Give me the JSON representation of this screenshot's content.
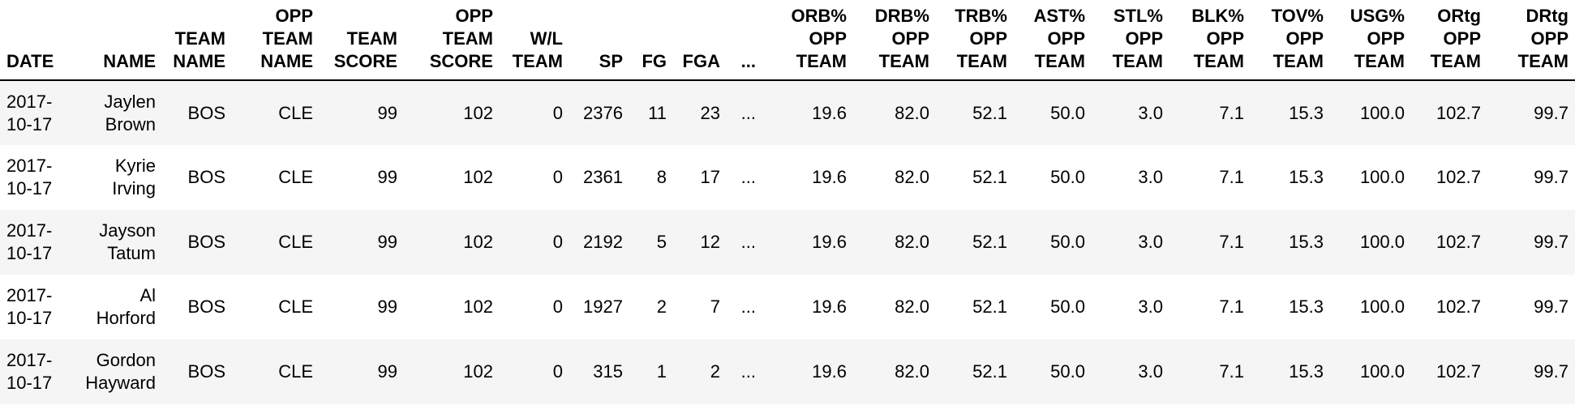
{
  "table": {
    "headers": [
      [
        "DATE"
      ],
      [
        "NAME"
      ],
      [
        "TEAM",
        "NAME"
      ],
      [
        "OPP",
        "TEAM",
        "NAME"
      ],
      [
        "TEAM",
        "SCORE"
      ],
      [
        "OPP",
        "TEAM",
        "SCORE"
      ],
      [
        "W/L",
        "TEAM"
      ],
      [
        "SP"
      ],
      [
        "FG"
      ],
      [
        "FGA"
      ],
      [
        "..."
      ],
      [
        "ORB%",
        "OPP",
        "TEAM"
      ],
      [
        "DRB%",
        "OPP",
        "TEAM"
      ],
      [
        "TRB%",
        "OPP",
        "TEAM"
      ],
      [
        "AST%",
        "OPP",
        "TEAM"
      ],
      [
        "STL%",
        "OPP",
        "TEAM"
      ],
      [
        "BLK%",
        "OPP",
        "TEAM"
      ],
      [
        "TOV%",
        "OPP",
        "TEAM"
      ],
      [
        "USG%",
        "OPP",
        "TEAM"
      ],
      [
        "ORtg",
        "OPP",
        "TEAM"
      ],
      [
        "DRtg",
        "OPP",
        "TEAM"
      ]
    ],
    "rows": [
      {
        "date": [
          "2017-",
          "10-17"
        ],
        "name": [
          "Jaylen",
          "Brown"
        ],
        "cells": [
          "BOS",
          "CLE",
          "99",
          "102",
          "0",
          "2376",
          "11",
          "23",
          "...",
          "19.6",
          "82.0",
          "52.1",
          "50.0",
          "3.0",
          "7.1",
          "15.3",
          "100.0",
          "102.7",
          "99.7"
        ]
      },
      {
        "date": [
          "2017-",
          "10-17"
        ],
        "name": [
          "Kyrie",
          "Irving"
        ],
        "cells": [
          "BOS",
          "CLE",
          "99",
          "102",
          "0",
          "2361",
          "8",
          "17",
          "...",
          "19.6",
          "82.0",
          "52.1",
          "50.0",
          "3.0",
          "7.1",
          "15.3",
          "100.0",
          "102.7",
          "99.7"
        ]
      },
      {
        "date": [
          "2017-",
          "10-17"
        ],
        "name": [
          "Jayson",
          "Tatum"
        ],
        "cells": [
          "BOS",
          "CLE",
          "99",
          "102",
          "0",
          "2192",
          "5",
          "12",
          "...",
          "19.6",
          "82.0",
          "52.1",
          "50.0",
          "3.0",
          "7.1",
          "15.3",
          "100.0",
          "102.7",
          "99.7"
        ]
      },
      {
        "date": [
          "2017-",
          "10-17"
        ],
        "name": [
          "Al",
          "Horford"
        ],
        "cells": [
          "BOS",
          "CLE",
          "99",
          "102",
          "0",
          "1927",
          "2",
          "7",
          "...",
          "19.6",
          "82.0",
          "52.1",
          "50.0",
          "3.0",
          "7.1",
          "15.3",
          "100.0",
          "102.7",
          "99.7"
        ]
      },
      {
        "date": [
          "2017-",
          "10-17"
        ],
        "name": [
          "Gordon",
          "Hayward"
        ],
        "cells": [
          "BOS",
          "CLE",
          "99",
          "102",
          "0",
          "315",
          "1",
          "2",
          "...",
          "19.6",
          "82.0",
          "52.1",
          "50.0",
          "3.0",
          "7.1",
          "15.3",
          "100.0",
          "102.7",
          "99.7"
        ]
      }
    ]
  }
}
